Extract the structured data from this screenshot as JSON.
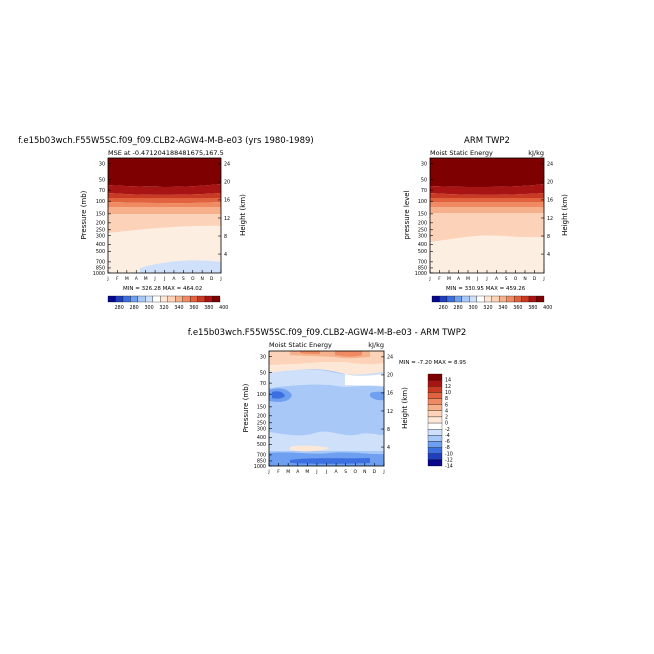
{
  "figure": {
    "panel1": {
      "title": "f.e15b03wch.F55W5SC.f09_f09.CLB2-AGW4-M-B-e03 (yrs 1980-1989)",
      "subtitle": "MSE at -0.471204188481675,167.5",
      "ylabel": "Pressure (mb)",
      "ylabel_right": "Height (km)",
      "minmax": "MIN = 326.28  MAX = 464.02"
    },
    "panel2": {
      "title": "ARM TWP2",
      "subtitle": "Moist Static Energy",
      "units": "kJ/kg",
      "ylabel": "pressure level",
      "ylabel_right": "Height (km)",
      "minmax": "MIN = 330.95  MAX = 459.26"
    },
    "panel3": {
      "title": "f.e15b03wch.F55W5SC.f09_f09.CLB2-AGW4-M-B-e03 - ARM TWP2",
      "subtitle": "Moist Static Energy",
      "units": "kJ/kg",
      "ylabel": "Pressure (mb)",
      "ylabel_right": "Height (km)",
      "minmax": "MIN =  -7.20  MAX =   8.95"
    }
  },
  "chart_data": [
    {
      "type": "heatmap",
      "name": "model",
      "x_ticks": [
        "J",
        "F",
        "M",
        "A",
        "M",
        "J",
        "J",
        "A",
        "S",
        "O",
        "N",
        "D",
        "J"
      ],
      "y_ticks": [
        "30",
        "50",
        "70",
        "100",
        "150",
        "200",
        "250",
        "300",
        "400",
        "500",
        "700",
        "850",
        "1000"
      ],
      "y_ticks_right": [
        "24",
        "20",
        "16",
        "12",
        "8",
        "4"
      ],
      "colorbar_labels": [
        "280",
        "280",
        "300",
        "320",
        "340",
        "360",
        "380",
        "400"
      ],
      "colorbar_colors": [
        "#08088c",
        "#1f3fbf",
        "#3d6fe0",
        "#6f9ff0",
        "#a8c8f8",
        "#cfe0fb",
        "#ffffff",
        "#fde8d8",
        "#fcd2b8",
        "#f7b08c",
        "#ef8a62",
        "#e0623f",
        "#c83a24",
        "#a81414",
        "#7f0000"
      ],
      "levels": [
        "#7f0000",
        "#a81414",
        "#c83a24",
        "#e0623f",
        "#ef8a62",
        "#f7b08c",
        "#fcd2b8",
        "#fde8d8",
        "#cfe0fb"
      ]
    },
    {
      "type": "heatmap",
      "name": "observations",
      "x_ticks": [
        "J",
        "F",
        "M",
        "A",
        "M",
        "J",
        "J",
        "A",
        "S",
        "O",
        "N",
        "D",
        "J"
      ],
      "y_ticks": [
        "30",
        "50",
        "70",
        "100",
        "150",
        "200",
        "250",
        "300",
        "400",
        "500",
        "700",
        "850",
        "1000"
      ],
      "y_ticks_right": [
        "24",
        "20",
        "16",
        "12",
        "8",
        "4"
      ],
      "colorbar_labels": [
        "260",
        "280",
        "300",
        "320",
        "340",
        "360",
        "380",
        "400"
      ]
    },
    {
      "type": "heatmap",
      "name": "difference",
      "x_ticks": [
        "J",
        "F",
        "M",
        "A",
        "M",
        "J",
        "J",
        "A",
        "S",
        "O",
        "N",
        "D",
        "J"
      ],
      "y_ticks": [
        "30",
        "50",
        "70",
        "100",
        "150",
        "200",
        "250",
        "300",
        "400",
        "500",
        "700",
        "850",
        "1000"
      ],
      "y_ticks_right": [
        "24",
        "20",
        "16",
        "12",
        "8",
        "4"
      ],
      "colorbar_labels": [
        "14",
        "12",
        "10",
        "8",
        "6",
        "4",
        "2",
        "0",
        "-2",
        "-4",
        "-6",
        "-8",
        "-10",
        "-12",
        "-14"
      ],
      "colorbar_colors": [
        "#7f0000",
        "#a81414",
        "#c83a24",
        "#e0623f",
        "#ef8a62",
        "#f7b08c",
        "#fcd2b8",
        "#fde8d8",
        "#ffffff",
        "#cfe0fb",
        "#a8c8f8",
        "#6f9ff0",
        "#3d6fe0",
        "#1f3fbf",
        "#08088c"
      ]
    }
  ]
}
